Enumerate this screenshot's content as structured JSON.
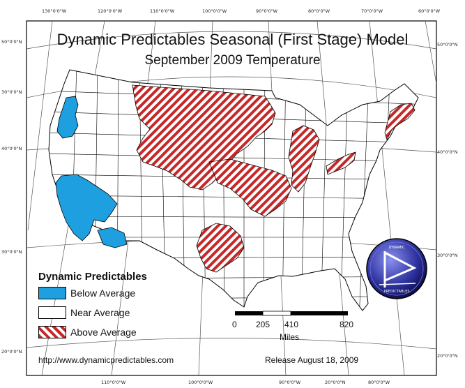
{
  "title": "Dynamic Predictables Seasonal (First Stage) Model",
  "subtitle": "September 2009 Temperature",
  "graticule": {
    "longitude_top": [
      "130°0'0\"W",
      "120°0'0\"W",
      "110°0'0\"W",
      "100°0'0\"W",
      "90°0'0\"W",
      "80°0'0\"W",
      "70°0'0\"W",
      "60°0'0\"W"
    ],
    "longitude_bottom": [
      "110°0'0\"W",
      "100°0'0\"W",
      "90°0'0\"W",
      "20°0'0\"N",
      "80°0'0\"W"
    ],
    "latitude_left": [
      "50°0'0\"N",
      "30°0'0\"N",
      "40°0'0\"N",
      "30°0'0\"N",
      "20°0'0\"N"
    ],
    "latitude_right": [
      "50°0'0\"N",
      "40°0'0\"N",
      "30°0'0\"N",
      "20°0'0\"N"
    ]
  },
  "legend": {
    "title": "Dynamic Predictables",
    "items": [
      {
        "label": "Below Average",
        "color": "#1e9fe0",
        "pattern": "solid"
      },
      {
        "label": "Near Average",
        "color": "#ffffff",
        "pattern": "solid"
      },
      {
        "label": "Above Average",
        "color": "#c62828",
        "pattern": "diagonal-hatch"
      }
    ]
  },
  "scale_bar": {
    "ticks": [
      "0",
      "205",
      "410",
      "820"
    ],
    "unit": "Miles"
  },
  "footer": {
    "url": "http://www.dynamicpredictables.com",
    "release": "Release August 18, 2009"
  },
  "logo": {
    "icon": "dynamic-predictables-logo",
    "top_text": "DYNAMIC",
    "bottom_text": "PREDICTABLES"
  },
  "colors": {
    "below": "#1e9fe0",
    "above": "#c62828",
    "border": "#000000"
  }
}
